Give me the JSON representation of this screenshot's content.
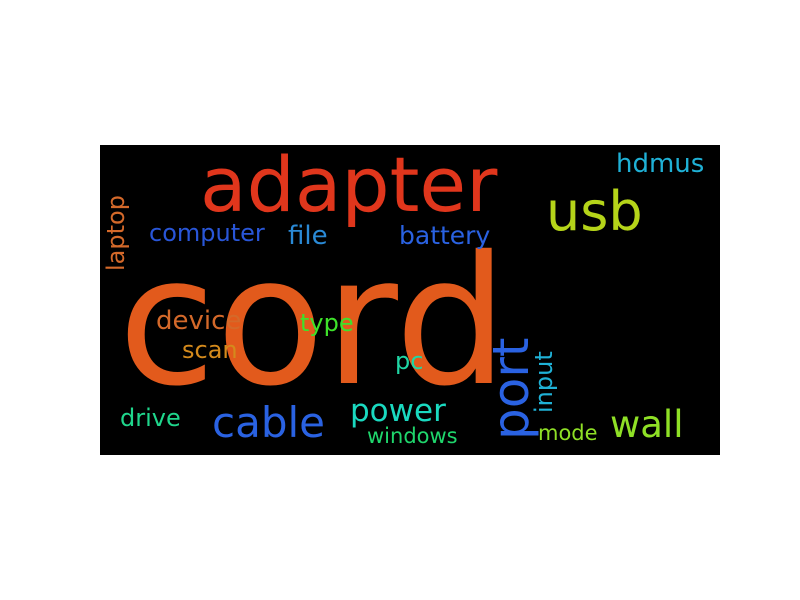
{
  "words": {
    "cord": {
      "text": "cord",
      "color": "#e25a1c"
    },
    "adapter": {
      "text": "adapter",
      "color": "#e0361c"
    },
    "usb": {
      "text": "usb",
      "color": "#b5d419"
    },
    "port": {
      "text": "port",
      "color": "#2a62e2"
    },
    "cable": {
      "text": "cable",
      "color": "#2a62e2"
    },
    "power": {
      "text": "power",
      "color": "#1ad9c0"
    },
    "wall": {
      "text": "wall",
      "color": "#8fe026"
    },
    "hdmus": {
      "text": "hdmus",
      "color": "#1fb1d6"
    },
    "laptop": {
      "text": "laptop",
      "color": "#d4692a"
    },
    "computer": {
      "text": "computer",
      "color": "#2956d8"
    },
    "file": {
      "text": "file",
      "color": "#2a8ad6"
    },
    "battery": {
      "text": "battery",
      "color": "#2a62e2"
    },
    "device": {
      "text": "device",
      "color": "#d4692a"
    },
    "scan": {
      "text": "scan",
      "color": "#d48a1c"
    },
    "type": {
      "text": "type",
      "color": "#3ee22a"
    },
    "pc": {
      "text": "pc",
      "color": "#1fd6a4"
    },
    "input": {
      "text": "input",
      "color": "#1fb1d6"
    },
    "drive": {
      "text": "drive",
      "color": "#1fd68c"
    },
    "windows": {
      "text": "windows",
      "color": "#1fd66c"
    },
    "mode": {
      "text": "mode",
      "color": "#8fe026"
    }
  }
}
